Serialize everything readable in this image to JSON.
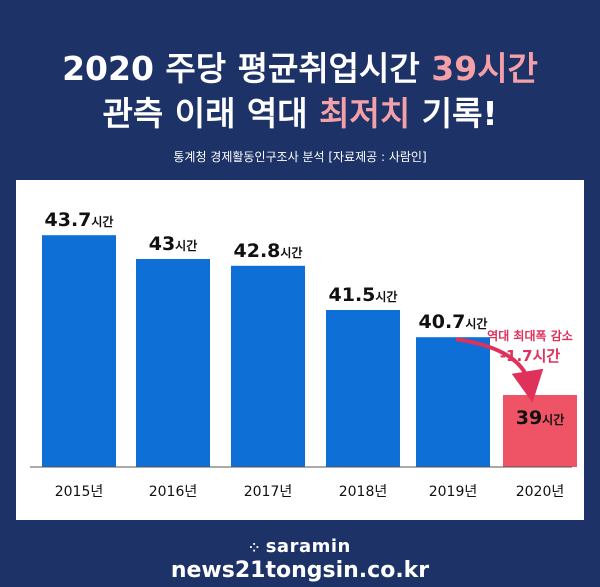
{
  "headline": {
    "line1_prefix": "2020 주당 평균취업시간 ",
    "line1_accent": "39시간",
    "line2_prefix": "관측 이래 역대 ",
    "line2_accent": "최저치",
    "line2_suffix": " 기록!"
  },
  "subtitle": "통계청 경제활동인구조사 분석 [자료제공 : 사람인]",
  "colors": {
    "background": "#1d3266",
    "bar": "#0e6fd6",
    "highlight_bar": "#ee5465",
    "accent_text": "#f3a0a8",
    "callout": "#e0315a"
  },
  "chart_data": {
    "type": "bar",
    "categories": [
      "2015년",
      "2016년",
      "2017년",
      "2018년",
      "2019년",
      "2020년"
    ],
    "values": [
      43.7,
      43,
      42.8,
      41.5,
      40.7,
      39
    ],
    "value_labels": [
      "43.7",
      "43",
      "42.8",
      "41.5",
      "40.7",
      "39"
    ],
    "unit": "시간",
    "highlight_index": 5,
    "grid": false,
    "annotation": {
      "line1": "역대 최대폭 감소",
      "line2": "-1.7시간"
    }
  },
  "footer": {
    "brand": "saramin",
    "brand_icon": "dots-icon",
    "url": "news21tongsin.co.kr"
  }
}
